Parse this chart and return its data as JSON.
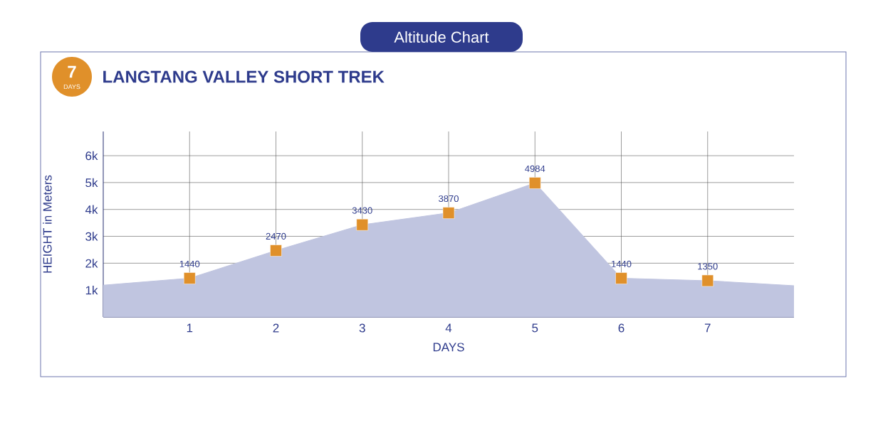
{
  "chart_data": {
    "type": "area",
    "title": "Altitude Chart",
    "subtitle": "LANGTANG VALLEY SHORT TREK",
    "xlabel": "DAYS",
    "ylabel": "HEIGHT in Meters",
    "annotations": [
      "7",
      "DAYS"
    ],
    "xlim": [
      0,
      8
    ],
    "xticks": [
      1,
      2,
      3,
      4,
      5,
      6,
      7
    ],
    "ylim": [
      0,
      6900
    ],
    "yticks": [
      {
        "value": 1000,
        "label": "1k"
      },
      {
        "value": 2000,
        "label": "2k"
      },
      {
        "value": 3000,
        "label": "3k"
      },
      {
        "value": 4000,
        "label": "4k"
      },
      {
        "value": 5000,
        "label": "5k"
      },
      {
        "value": 6000,
        "label": "6k"
      }
    ],
    "grid": true,
    "series": [
      {
        "color": "#c0c5e0",
        "x": [
          0,
          1,
          2,
          3,
          4,
          5,
          6,
          7,
          8
        ],
        "values": [
          1180,
          1440,
          2470,
          3430,
          3870,
          4984,
          1440,
          1350,
          1160
        ]
      },
      {
        "type": "scatter",
        "color": "#e0902a",
        "marker": "square",
        "x": [
          1,
          2,
          3,
          4,
          5,
          6,
          7
        ],
        "values": [
          1440,
          2470,
          3430,
          3870,
          4984,
          1440,
          1350
        ],
        "value_labels": [
          "1440",
          "2470",
          "3430",
          "3870",
          "4984",
          "1440",
          "1350"
        ]
      }
    ]
  }
}
